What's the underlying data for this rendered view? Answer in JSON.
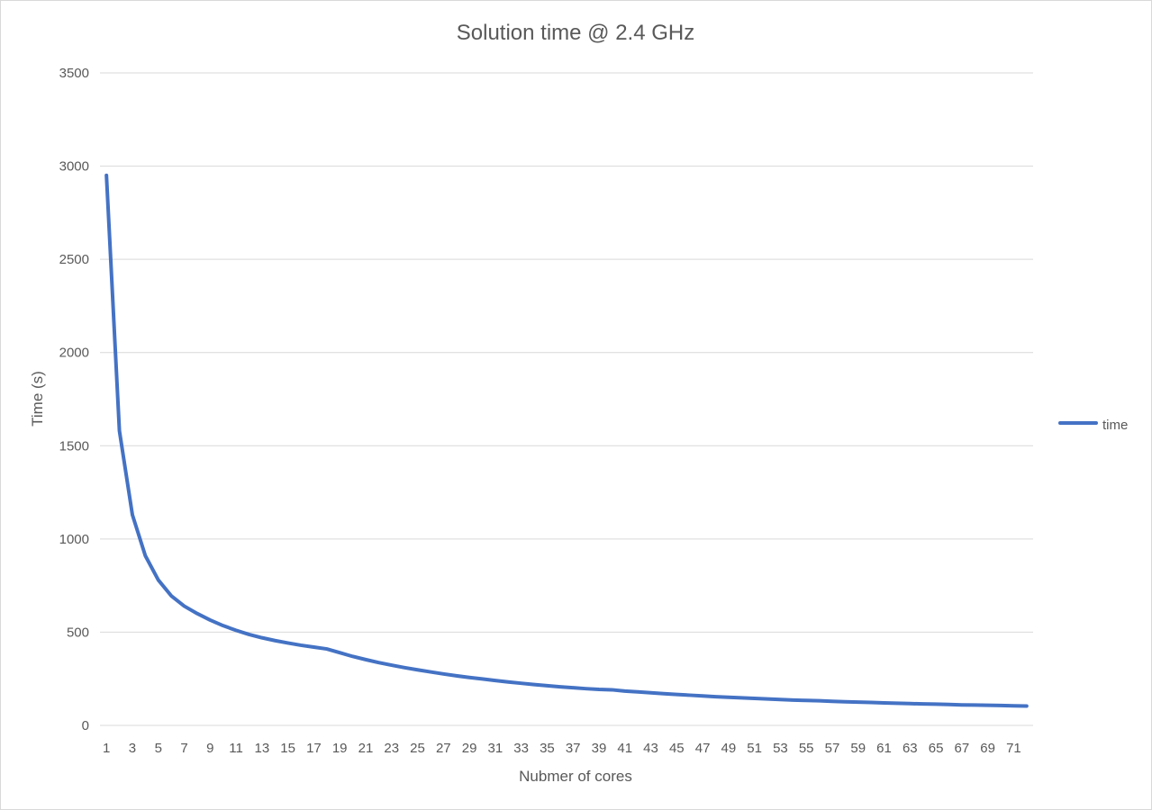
{
  "chart_data": {
    "type": "line",
    "title": "Solution time @ 2.4 GHz",
    "xlabel": "Nubmer of cores",
    "ylabel": "Time (s)",
    "ylim": [
      0,
      3500
    ],
    "yticks": [
      0,
      500,
      1000,
      1500,
      2000,
      2500,
      3000,
      3500
    ],
    "grid": true,
    "legend_position": "right",
    "x": [
      1,
      2,
      3,
      4,
      5,
      6,
      7,
      8,
      9,
      10,
      11,
      12,
      13,
      14,
      15,
      16,
      17,
      18,
      19,
      20,
      21,
      22,
      23,
      24,
      25,
      26,
      27,
      28,
      29,
      30,
      31,
      32,
      33,
      34,
      35,
      36,
      37,
      38,
      39,
      40,
      41,
      42,
      43,
      44,
      45,
      46,
      47,
      48,
      49,
      50,
      51,
      52,
      53,
      54,
      55,
      56,
      57,
      58,
      59,
      60,
      61,
      62,
      63,
      64,
      65,
      66,
      67,
      68,
      69,
      70,
      71,
      72
    ],
    "xtick_labels": [
      "1",
      "3",
      "5",
      "7",
      "9",
      "11",
      "13",
      "15",
      "17",
      "19",
      "21",
      "23",
      "25",
      "27",
      "29",
      "31",
      "33",
      "35",
      "37",
      "39",
      "41",
      "43",
      "45",
      "47",
      "49",
      "51",
      "53",
      "55",
      "57",
      "59",
      "61",
      "63",
      "65",
      "67",
      "69",
      "71"
    ],
    "series": [
      {
        "name": "time",
        "color": "#4472c4",
        "values": [
          2950,
          1580,
          1130,
          910,
          780,
          695,
          640,
          600,
          565,
          535,
          510,
          488,
          470,
          455,
          442,
          430,
          420,
          410,
          390,
          370,
          353,
          337,
          323,
          310,
          298,
          287,
          276,
          266,
          257,
          249,
          241,
          233,
          226,
          219,
          213,
          207,
          202,
          197,
          193,
          191,
          184,
          180,
          175,
          170,
          166,
          162,
          158,
          154,
          151,
          148,
          145,
          142,
          139,
          136,
          134,
          132,
          129,
          127,
          125,
          123,
          121,
          119,
          117,
          115,
          114,
          112,
          110,
          109,
          108,
          107,
          105,
          104
        ]
      }
    ]
  }
}
